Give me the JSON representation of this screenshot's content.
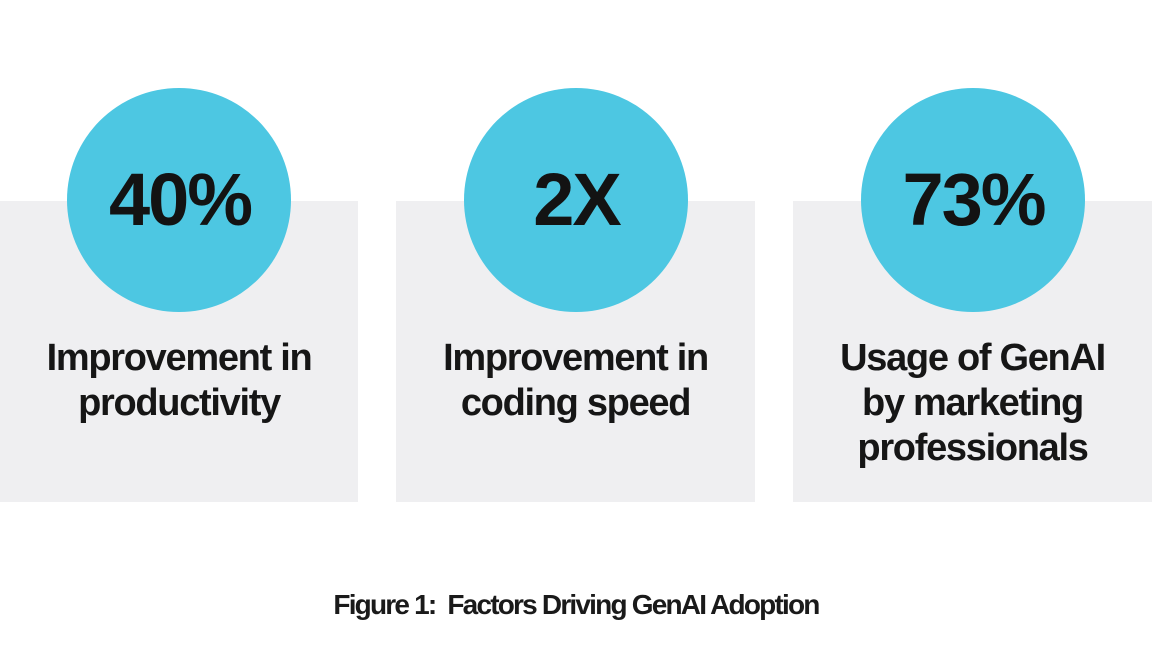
{
  "page": {
    "caption": "Figure 1:  Factors Driving GenAI Adoption"
  },
  "colors": {
    "accent_cyan": "#4DC7E2",
    "card_gray": "#EFEFF1",
    "text_dark": "#161616",
    "page_background": "#FFFFFF"
  },
  "stats": [
    {
      "value": "40%",
      "label": "Improvement in\nproductivity"
    },
    {
      "value": "2X",
      "label": "Improvement in\ncoding speed"
    },
    {
      "value": "73%",
      "label": "Usage of GenAI\nby marketing\nprofessionals"
    }
  ]
}
